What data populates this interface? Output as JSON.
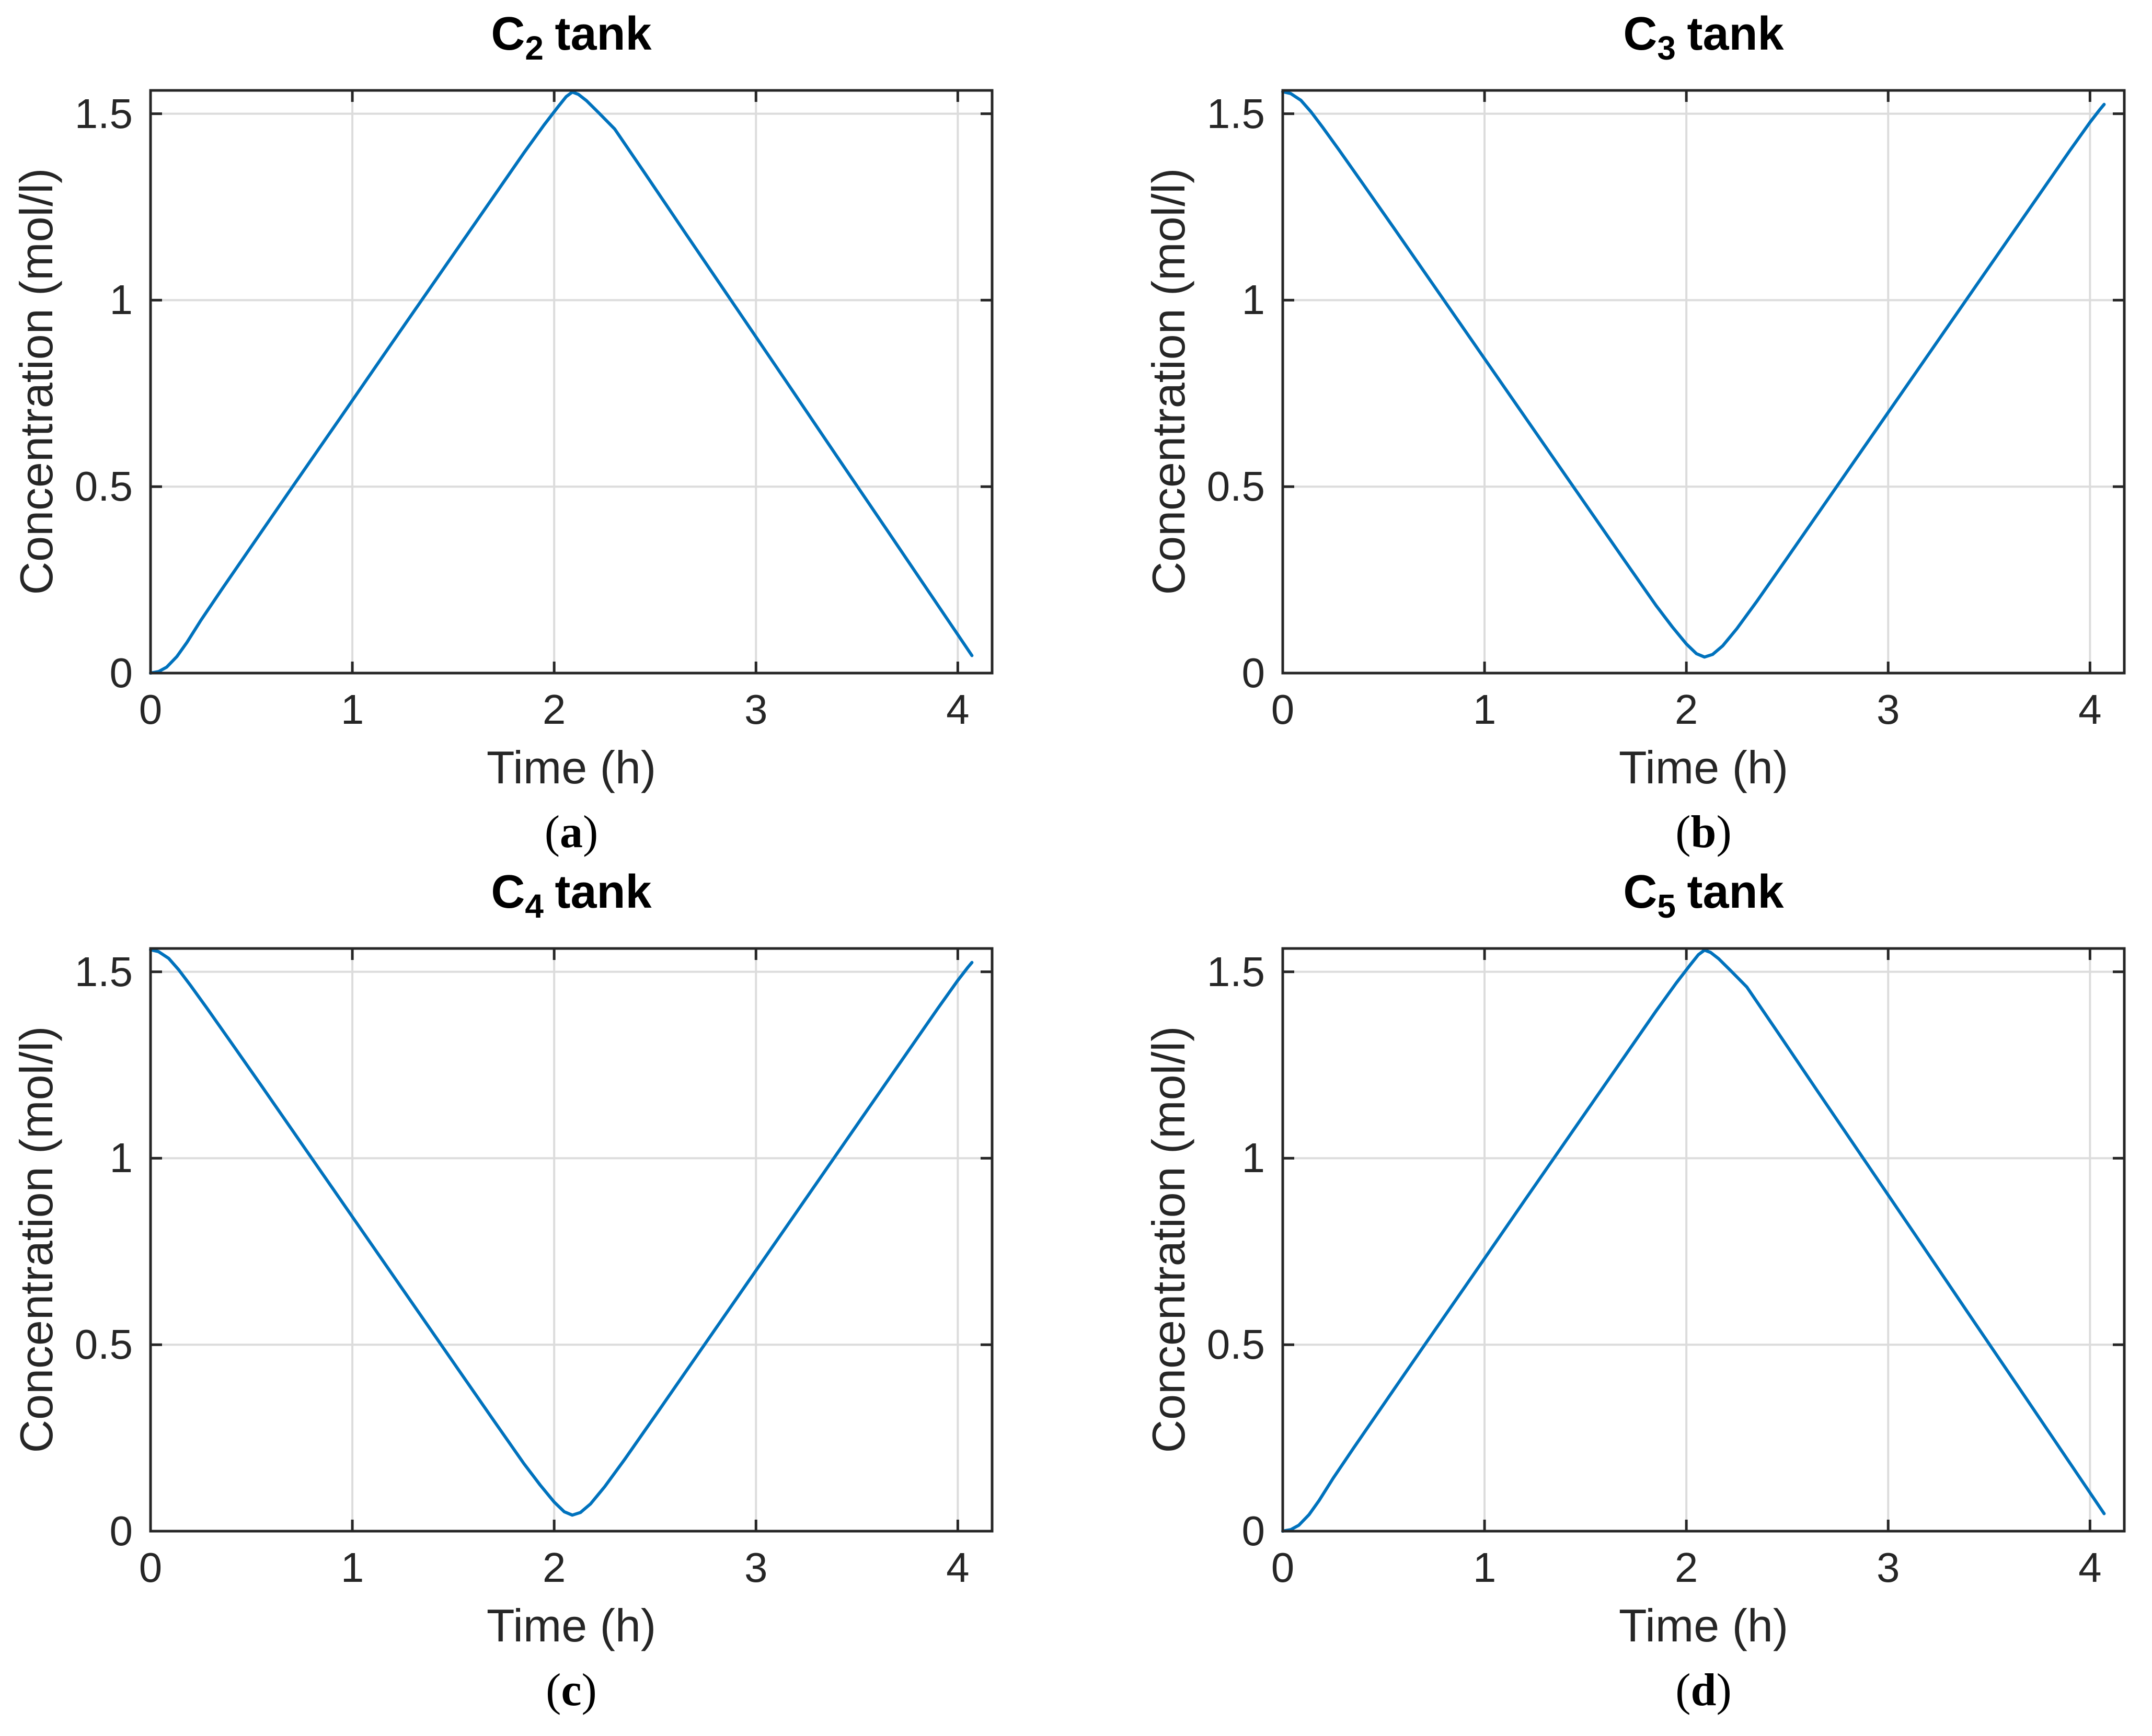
{
  "figure": {
    "background": "#ffffff",
    "colors": {
      "line": "#0072BD",
      "axis": "#262626",
      "grid": "#dcdcdc",
      "title": "#000000",
      "label": "#262626"
    }
  },
  "chart_data": [
    {
      "type": "line",
      "title": {
        "base": "C",
        "sub": "2",
        "rest": "tank"
      },
      "caption": {
        "open": "(",
        "letter": "a",
        "close": ")"
      },
      "xlabel": "Time (h)",
      "ylabel": "Concentration (mol/l)",
      "xlim": [
        0,
        4.17
      ],
      "ylim": [
        0,
        1.5625
      ],
      "xticks": [
        0,
        1,
        2,
        3,
        4
      ],
      "yticks": [
        0,
        0.5,
        1,
        1.5
      ],
      "xtick_labels": [
        "0",
        "1",
        "2",
        "3",
        "4"
      ],
      "ytick_labels": [
        "0",
        "0.5",
        "1",
        "1.5"
      ],
      "grid": true,
      "legend": "none",
      "series": [
        {
          "color": "#0072BD",
          "points": [
            [
              0,
              0
            ],
            [
              0.04,
              0.004
            ],
            [
              0.08,
              0.016
            ],
            [
              0.13,
              0.044
            ],
            [
              0.18,
              0.082
            ],
            [
              0.25,
              0.142
            ],
            [
              0.35,
              0.222
            ],
            [
              0.5,
              0.34
            ],
            [
              0.7,
              0.497
            ],
            [
              0.95,
              0.692
            ],
            [
              1.2,
              0.888
            ],
            [
              1.45,
              1.083
            ],
            [
              1.7,
              1.278
            ],
            [
              1.85,
              1.395
            ],
            [
              1.95,
              1.47
            ],
            [
              2.02,
              1.519
            ],
            [
              2.06,
              1.546
            ],
            [
              2.09,
              1.558
            ],
            [
              2.12,
              1.552
            ],
            [
              2.16,
              1.535
            ],
            [
              2.22,
              1.503
            ],
            [
              2.3,
              1.459
            ],
            [
              2.45,
              1.34
            ],
            [
              2.65,
              1.18
            ],
            [
              2.9,
              0.981
            ],
            [
              3.15,
              0.782
            ],
            [
              3.4,
              0.582
            ],
            [
              3.65,
              0.383
            ],
            [
              3.85,
              0.223
            ],
            [
              3.95,
              0.143
            ],
            [
              4.02,
              0.087
            ],
            [
              4.07,
              0.047
            ]
          ]
        }
      ]
    },
    {
      "type": "line",
      "title": {
        "base": "C",
        "sub": "3",
        "rest": "tank"
      },
      "caption": {
        "open": "(",
        "letter": "b",
        "close": ")"
      },
      "xlabel": "Time (h)",
      "ylabel": "Concentration (mol/l)",
      "xlim": [
        0,
        4.17
      ],
      "ylim": [
        0,
        1.5625
      ],
      "xticks": [
        0,
        1,
        2,
        3,
        4
      ],
      "yticks": [
        0,
        0.5,
        1,
        1.5
      ],
      "xtick_labels": [
        "0",
        "1",
        "2",
        "3",
        "4"
      ],
      "ytick_labels": [
        "0",
        "0.5",
        "1",
        "1.5"
      ],
      "grid": true,
      "legend": "none",
      "series": [
        {
          "color": "#0072BD",
          "points": [
            [
              0,
              1.559
            ],
            [
              0.04,
              1.554
            ],
            [
              0.09,
              1.536
            ],
            [
              0.14,
              1.505
            ],
            [
              0.2,
              1.462
            ],
            [
              0.28,
              1.402
            ],
            [
              0.4,
              1.31
            ],
            [
              0.55,
              1.194
            ],
            [
              0.75,
              1.038
            ],
            [
              1.0,
              0.843
            ],
            [
              1.25,
              0.648
            ],
            [
              1.5,
              0.453
            ],
            [
              1.7,
              0.297
            ],
            [
              1.85,
              0.181
            ],
            [
              1.93,
              0.124
            ],
            [
              2.0,
              0.078
            ],
            [
              2.05,
              0.052
            ],
            [
              2.09,
              0.043
            ],
            [
              2.13,
              0.05
            ],
            [
              2.18,
              0.073
            ],
            [
              2.25,
              0.119
            ],
            [
              2.35,
              0.193
            ],
            [
              2.5,
              0.309
            ],
            [
              2.7,
              0.465
            ],
            [
              2.95,
              0.66
            ],
            [
              3.2,
              0.855
            ],
            [
              3.45,
              1.05
            ],
            [
              3.7,
              1.245
            ],
            [
              3.9,
              1.401
            ],
            [
              4.0,
              1.477
            ],
            [
              4.05,
              1.512
            ],
            [
              4.07,
              1.525
            ]
          ]
        }
      ]
    },
    {
      "type": "line",
      "title": {
        "base": "C",
        "sub": "4",
        "rest": "tank"
      },
      "caption": {
        "open": "(",
        "letter": "c",
        "close": ")"
      },
      "xlabel": "Time (h)",
      "ylabel": "Concentration (mol/l)",
      "xlim": [
        0,
        4.17
      ],
      "ylim": [
        0,
        1.5625
      ],
      "xticks": [
        0,
        1,
        2,
        3,
        4
      ],
      "yticks": [
        0,
        0.5,
        1,
        1.5
      ],
      "xtick_labels": [
        "0",
        "1",
        "2",
        "3",
        "4"
      ],
      "ytick_labels": [
        "0",
        "0.5",
        "1",
        "1.5"
      ],
      "grid": true,
      "legend": "none",
      "series": [
        {
          "color": "#0072BD",
          "points": [
            [
              0,
              1.559
            ],
            [
              0.04,
              1.554
            ],
            [
              0.09,
              1.536
            ],
            [
              0.14,
              1.505
            ],
            [
              0.2,
              1.462
            ],
            [
              0.28,
              1.402
            ],
            [
              0.4,
              1.31
            ],
            [
              0.55,
              1.194
            ],
            [
              0.75,
              1.038
            ],
            [
              1.0,
              0.843
            ],
            [
              1.25,
              0.648
            ],
            [
              1.5,
              0.453
            ],
            [
              1.7,
              0.297
            ],
            [
              1.85,
              0.181
            ],
            [
              1.93,
              0.124
            ],
            [
              2.0,
              0.078
            ],
            [
              2.05,
              0.052
            ],
            [
              2.09,
              0.043
            ],
            [
              2.13,
              0.05
            ],
            [
              2.18,
              0.073
            ],
            [
              2.25,
              0.119
            ],
            [
              2.35,
              0.193
            ],
            [
              2.5,
              0.309
            ],
            [
              2.7,
              0.465
            ],
            [
              2.95,
              0.66
            ],
            [
              3.2,
              0.855
            ],
            [
              3.45,
              1.05
            ],
            [
              3.7,
              1.245
            ],
            [
              3.9,
              1.401
            ],
            [
              4.0,
              1.477
            ],
            [
              4.05,
              1.512
            ],
            [
              4.07,
              1.525
            ]
          ]
        }
      ]
    },
    {
      "type": "line",
      "title": {
        "base": "C",
        "sub": "5",
        "rest": "tank"
      },
      "caption": {
        "open": "(",
        "letter": "d",
        "close": ")"
      },
      "xlabel": "Time (h)",
      "ylabel": "Concentration (mol/l)",
      "xlim": [
        0,
        4.17
      ],
      "ylim": [
        0,
        1.5625
      ],
      "xticks": [
        0,
        1,
        2,
        3,
        4
      ],
      "yticks": [
        0,
        0.5,
        1,
        1.5
      ],
      "xtick_labels": [
        "0",
        "1",
        "2",
        "3",
        "4"
      ],
      "ytick_labels": [
        "0",
        "0.5",
        "1",
        "1.5"
      ],
      "grid": true,
      "legend": "none",
      "series": [
        {
          "color": "#0072BD",
          "points": [
            [
              0,
              0
            ],
            [
              0.04,
              0.004
            ],
            [
              0.08,
              0.016
            ],
            [
              0.13,
              0.044
            ],
            [
              0.18,
              0.082
            ],
            [
              0.25,
              0.142
            ],
            [
              0.35,
              0.222
            ],
            [
              0.5,
              0.34
            ],
            [
              0.7,
              0.497
            ],
            [
              0.95,
              0.692
            ],
            [
              1.2,
              0.888
            ],
            [
              1.45,
              1.083
            ],
            [
              1.7,
              1.278
            ],
            [
              1.85,
              1.395
            ],
            [
              1.95,
              1.47
            ],
            [
              2.02,
              1.519
            ],
            [
              2.06,
              1.546
            ],
            [
              2.09,
              1.558
            ],
            [
              2.12,
              1.552
            ],
            [
              2.16,
              1.535
            ],
            [
              2.22,
              1.503
            ],
            [
              2.3,
              1.459
            ],
            [
              2.45,
              1.34
            ],
            [
              2.65,
              1.18
            ],
            [
              2.9,
              0.981
            ],
            [
              3.15,
              0.782
            ],
            [
              3.4,
              0.582
            ],
            [
              3.65,
              0.383
            ],
            [
              3.85,
              0.223
            ],
            [
              3.95,
              0.143
            ],
            [
              4.02,
              0.087
            ],
            [
              4.07,
              0.047
            ]
          ]
        }
      ]
    }
  ]
}
